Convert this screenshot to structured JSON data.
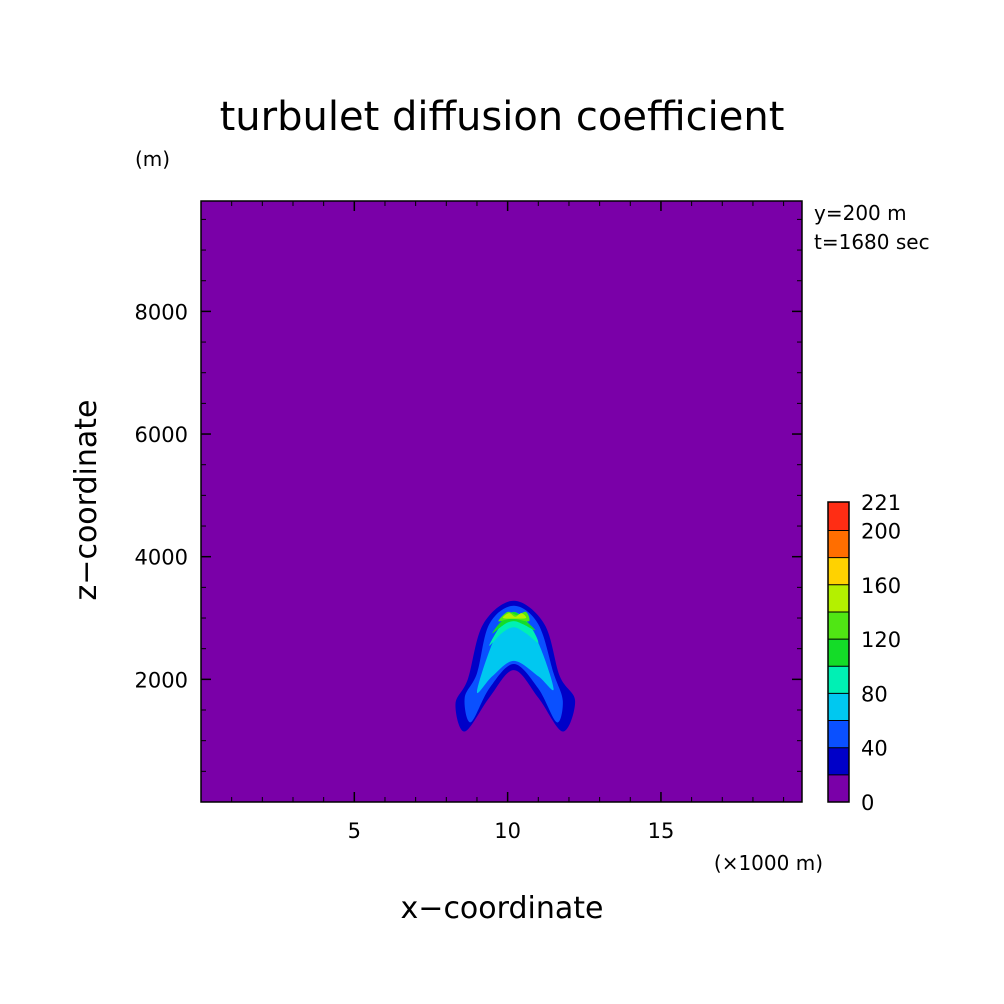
{
  "chart_data": {
    "type": "heatmap",
    "title": "turbulet diffusion coefficient",
    "xlabel": "x−coordinate",
    "ylabel": "z−coordinate",
    "x_unit": "(×1000 m)",
    "y_unit": "(m)",
    "annotations": [
      "y=200 m",
      "t=1680 sec"
    ],
    "xlim": [
      0,
      19.6
    ],
    "ylim": [
      0,
      9800
    ],
    "x_ticks": [
      5,
      10,
      15
    ],
    "x_tick_labels": [
      "5",
      "10",
      "15"
    ],
    "y_ticks": [
      2000,
      4000,
      6000,
      8000
    ],
    "y_tick_labels": [
      "2000",
      "4000",
      "6000",
      "8000"
    ],
    "background_level": 0,
    "colorbar": {
      "levels": [
        0,
        20,
        40,
        60,
        80,
        100,
        120,
        140,
        160,
        180,
        200,
        221
      ],
      "labels": [
        "0",
        "40",
        "80",
        "120",
        "160",
        "200",
        "221"
      ],
      "label_values": [
        0,
        40,
        80,
        120,
        160,
        200,
        221
      ],
      "colors": [
        "#7a00a8",
        "#0000c8",
        "#0a50ff",
        "#00c8f0",
        "#00f0b4",
        "#14dc28",
        "#50e614",
        "#b4f000",
        "#ffd200",
        "#ff6e00",
        "#ff2d14"
      ]
    },
    "contours": [
      {
        "level": 20,
        "color": "#0000c8",
        "points": [
          [
            8.6,
            1150
          ],
          [
            8.3,
            1600
          ],
          [
            8.7,
            2000
          ],
          [
            9.2,
            2900
          ],
          [
            10.2,
            3280
          ],
          [
            11.2,
            2900
          ],
          [
            11.7,
            2050
          ],
          [
            12.2,
            1650
          ],
          [
            11.8,
            1150
          ],
          [
            11.0,
            1700
          ],
          [
            10.2,
            2150
          ],
          [
            9.4,
            1700
          ]
        ]
      },
      {
        "level": 40,
        "color": "#0a50ff",
        "points": [
          [
            8.8,
            1300
          ],
          [
            8.6,
            1700
          ],
          [
            9.0,
            2100
          ],
          [
            9.4,
            2900
          ],
          [
            10.2,
            3200
          ],
          [
            11.0,
            2900
          ],
          [
            11.5,
            2100
          ],
          [
            11.8,
            1650
          ],
          [
            11.6,
            1300
          ],
          [
            11.0,
            1850
          ],
          [
            10.2,
            2250
          ],
          [
            9.4,
            1850
          ]
        ]
      },
      {
        "level": 60,
        "color": "#00c8f0",
        "points": [
          [
            9.0,
            1800
          ],
          [
            9.6,
            2700
          ],
          [
            10.2,
            3050
          ],
          [
            10.9,
            2700
          ],
          [
            11.5,
            1850
          ],
          [
            11.0,
            2050
          ],
          [
            10.2,
            2300
          ],
          [
            9.5,
            2050
          ]
        ]
      },
      {
        "level": 80,
        "color": "#00f0b4",
        "points": [
          [
            9.4,
            2550
          ],
          [
            9.8,
            2900
          ],
          [
            10.2,
            3100
          ],
          [
            10.7,
            2900
          ],
          [
            11.0,
            2600
          ],
          [
            10.6,
            2750
          ],
          [
            10.2,
            2850
          ],
          [
            9.8,
            2750
          ]
        ]
      },
      {
        "level": 100,
        "color": "#14dc28",
        "points": [
          [
            9.5,
            2750
          ],
          [
            9.8,
            2950
          ],
          [
            10.2,
            3100
          ],
          [
            10.6,
            2950
          ],
          [
            10.9,
            2800
          ],
          [
            10.5,
            2900
          ],
          [
            10.2,
            2950
          ],
          [
            9.9,
            2900
          ]
        ]
      },
      {
        "level": 120,
        "color": "#50e614",
        "points": [
          [
            9.7,
            2950
          ],
          [
            10.0,
            3100
          ],
          [
            10.3,
            3050
          ],
          [
            10.6,
            3100
          ],
          [
            10.7,
            2950
          ],
          [
            10.3,
            2980
          ],
          [
            10.0,
            2980
          ]
        ]
      },
      {
        "level": 140,
        "color": "#b4f000",
        "points": [
          [
            9.85,
            3000
          ],
          [
            10.05,
            3080
          ],
          [
            10.25,
            3020
          ],
          [
            10.45,
            3080
          ],
          [
            10.6,
            3000
          ],
          [
            10.25,
            2990
          ]
        ]
      }
    ]
  }
}
